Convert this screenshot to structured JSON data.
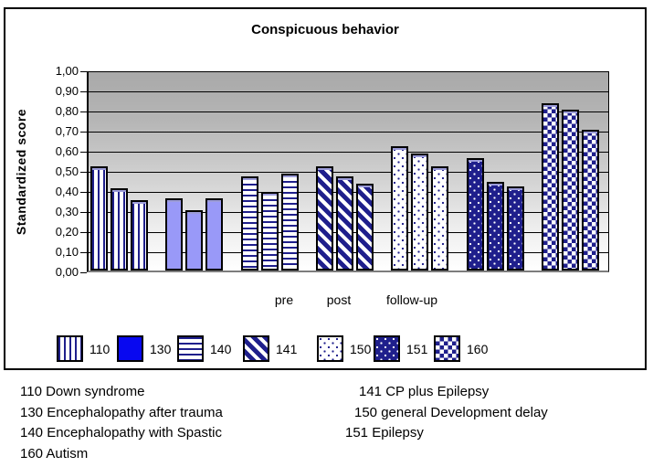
{
  "chart": {
    "title": "Conspicuous behavior",
    "y_axis": {
      "title": "Standardized score",
      "ticks": [
        "1,00",
        "0,90",
        "0,80",
        "0,70",
        "0,60",
        "0,50",
        "0,40",
        "0,30",
        "0,20",
        "0,10",
        "0,00"
      ]
    },
    "x_axis": {
      "labels": [
        "pre",
        "post",
        "follow-up"
      ]
    }
  },
  "chart_data": {
    "type": "bar",
    "title": "Conspicuous behavior",
    "xlabel": "",
    "ylabel": "Standardized score",
    "ylim": [
      0,
      1
    ],
    "ytick_interval": 0.1,
    "decimal_style": "comma",
    "grid": true,
    "legend_position": "bottom",
    "plot_background": "gray-to-white vertical gradient",
    "categories": [
      "pre",
      "post",
      "follow-up"
    ],
    "series": [
      {
        "name": "110",
        "pattern": "vertical-stripes",
        "values": [
          0.52,
          0.41,
          0.35
        ]
      },
      {
        "name": "130",
        "pattern": "solid",
        "values": [
          0.36,
          0.3,
          0.36
        ]
      },
      {
        "name": "140",
        "pattern": "horizontal-stripes",
        "values": [
          0.47,
          0.39,
          0.48
        ]
      },
      {
        "name": "141",
        "pattern": "diagonal-stripes",
        "values": [
          0.52,
          0.47,
          0.43
        ]
      },
      {
        "name": "150",
        "pattern": "dots-on-white",
        "values": [
          0.62,
          0.58,
          0.52
        ]
      },
      {
        "name": "151",
        "pattern": "dots-on-navy",
        "values": [
          0.56,
          0.44,
          0.42
        ]
      },
      {
        "name": "160",
        "pattern": "checkerboard",
        "values": [
          0.83,
          0.8,
          0.7
        ]
      }
    ]
  },
  "colors": {
    "pattern_navy": "#1f1f8c",
    "solid_bar_fill": "#9999f8",
    "legend_130_fill": "#0808f0",
    "bar_outline": "#000000",
    "bar_top_highlight": "#9c9cd9",
    "plot_gradient_top": "#a9a9a9",
    "plot_gradient_bottom": "#ffffff",
    "baseline_gray": "#7d7d7d"
  },
  "annotations": {
    "left": [
      "110 Down syndrome",
      "130 Encephalopathy after trauma",
      "140 Encephalopathy with Spastic",
      "160 Autism"
    ],
    "right": [
      "141 CP plus Epilepsy",
      "150 general Development delay",
      "151 Epilepsy"
    ]
  }
}
